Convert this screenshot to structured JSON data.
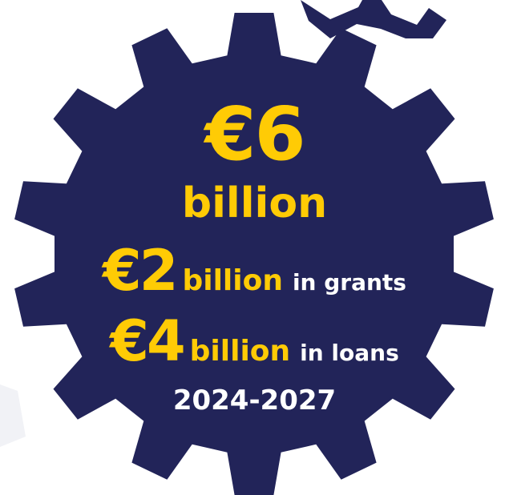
{
  "colors": {
    "gear": "#222459",
    "accent": "#ffcb05",
    "text_white": "#ffffff",
    "bg_shape": "#f1f2f6"
  },
  "icons": [
    "gear-icon"
  ],
  "headline": {
    "amount": "€6",
    "unit": "billion"
  },
  "grants": {
    "amount": "€2",
    "unit": "billion",
    "label": "in grants"
  },
  "loans": {
    "amount": "€4",
    "unit": "billion",
    "label": "in loans"
  },
  "period": "2024-2027"
}
